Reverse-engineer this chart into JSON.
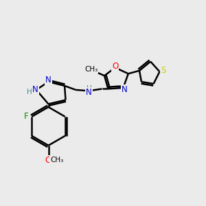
{
  "bg_color": "#ebebeb",
  "bond_color": "#000000",
  "bond_width": 1.8,
  "atom_colors": {
    "N": "#0000cc",
    "O": "#ff0000",
    "S": "#cccc00",
    "F": "#008800",
    "C": "#000000",
    "H": "#4a8a8a"
  },
  "font_size_atom": 8.5,
  "font_size_small": 7.0
}
